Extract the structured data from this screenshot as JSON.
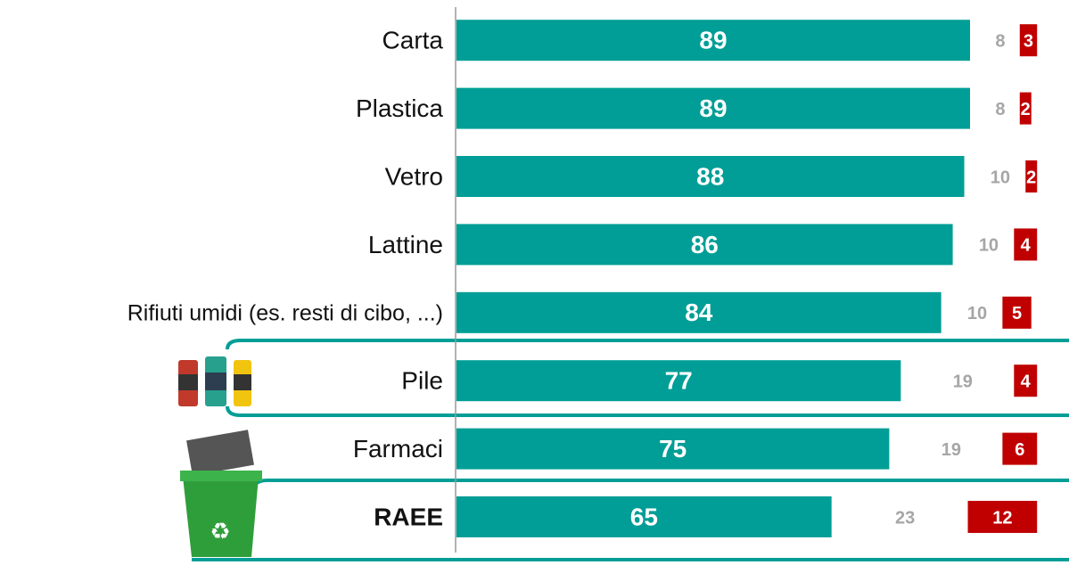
{
  "chart_data": {
    "type": "bar",
    "orientation": "horizontal",
    "categories": [
      "Carta",
      "Plastica",
      "Vetro",
      "Lattine",
      "Rifiuti umidi (es. resti di cibo, ...)",
      "Pile",
      "Farmaci",
      "RAEE"
    ],
    "series": [
      {
        "color": "#009e96",
        "values": [
          89,
          89,
          88,
          86,
          84,
          77,
          75,
          65
        ]
      },
      {
        "color": "#a6a6a6",
        "values": [
          8,
          8,
          10,
          10,
          10,
          19,
          19,
          23
        ]
      },
      {
        "color": "#c00000",
        "values": [
          3,
          2,
          2,
          4,
          5,
          4,
          6,
          12
        ]
      }
    ],
    "xlim": [
      0,
      89
    ]
  }
}
